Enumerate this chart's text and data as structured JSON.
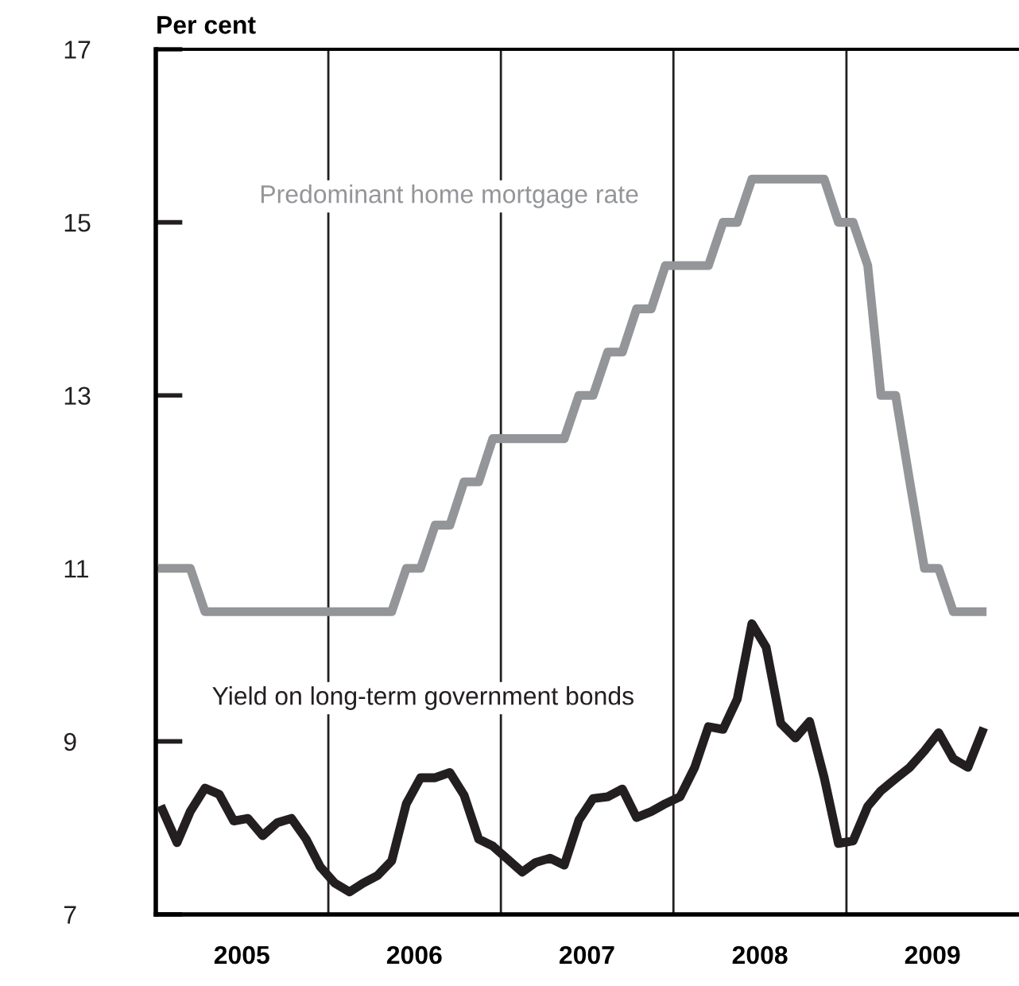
{
  "chart_data": {
    "type": "line",
    "ylabel": "Per cent",
    "x": [
      "2005-01-15",
      "2005-02-15",
      "2005-03-15",
      "2005-04-15",
      "2005-05-15",
      "2005-06-15",
      "2005-07-15",
      "2005-08-15",
      "2005-09-15",
      "2005-10-15",
      "2005-11-15",
      "2005-12-15",
      "2006-01-15",
      "2006-02-15",
      "2006-03-15",
      "2006-04-15",
      "2006-05-15",
      "2006-06-15",
      "2006-07-15",
      "2006-08-15",
      "2006-09-15",
      "2006-10-15",
      "2006-11-15",
      "2006-12-15",
      "2007-01-15",
      "2007-02-15",
      "2007-03-15",
      "2007-04-15",
      "2007-05-15",
      "2007-06-15",
      "2007-07-15",
      "2007-08-15",
      "2007-09-15",
      "2007-10-15",
      "2007-11-15",
      "2007-12-15",
      "2008-01-15",
      "2008-02-15",
      "2008-03-15",
      "2008-04-15",
      "2008-05-15",
      "2008-06-15",
      "2008-07-15",
      "2008-08-15",
      "2008-09-15",
      "2008-10-15",
      "2008-11-15",
      "2008-12-15",
      "2009-01-15",
      "2009-02-15",
      "2009-03-15",
      "2009-04-15",
      "2009-05-15",
      "2009-06-15",
      "2009-07-15",
      "2009-08-15",
      "2009-09-15",
      "2009-10-15"
    ],
    "series": [
      {
        "name": "Predominant home mortgage rate",
        "color": "#939598",
        "values": [
          11,
          11,
          11,
          10.5,
          10.5,
          10.5,
          10.5,
          10.5,
          10.5,
          10.5,
          10.5,
          10.5,
          10.5,
          10.5,
          10.5,
          10.5,
          10.5,
          11,
          11,
          11.5,
          11.5,
          12,
          12,
          12.5,
          12.5,
          12.5,
          12.5,
          12.5,
          12.5,
          13,
          13,
          13.5,
          13.5,
          14,
          14,
          14.5,
          14.5,
          14.5,
          14.5,
          15,
          15,
          15.5,
          15.5,
          15.5,
          15.5,
          15.5,
          15.5,
          15,
          15,
          14.5,
          13,
          13,
          12,
          11,
          11,
          10.5,
          10.5,
          10.5
        ]
      },
      {
        "name": "Yield on long-term government bonds",
        "color": "#231f20",
        "values": [
          8.21,
          7.83,
          8.19,
          8.46,
          8.39,
          8.08,
          8.11,
          7.91,
          8.06,
          8.11,
          7.87,
          7.55,
          7.36,
          7.26,
          7.36,
          7.45,
          7.62,
          8.28,
          8.58,
          8.58,
          8.64,
          8.38,
          7.87,
          7.79,
          7.64,
          7.49,
          7.6,
          7.65,
          7.57,
          8.09,
          8.34,
          8.36,
          8.45,
          8.12,
          8.19,
          8.28,
          8.36,
          8.7,
          9.17,
          9.14,
          9.49,
          10.36,
          10.09,
          9.21,
          9.04,
          9.23,
          8.58,
          7.82,
          7.85,
          8.25,
          8.43,
          8.57,
          8.7,
          8.89,
          9.1,
          8.8,
          8.7,
          9.11
        ]
      }
    ],
    "xlim": [
      "2005-01-01",
      "2010-01-01"
    ],
    "xticks": [
      {
        "value": "2005-07-02",
        "label": "2005"
      },
      {
        "value": "2006-07-02",
        "label": "2006"
      },
      {
        "value": "2007-07-02",
        "label": "2007"
      },
      {
        "value": "2008-07-02",
        "label": "2008"
      },
      {
        "value": "2009-07-02",
        "label": "2009"
      }
    ],
    "ylim": [
      7,
      17
    ],
    "yticks": [
      7,
      9,
      11,
      13,
      15,
      17
    ],
    "ref_lines": [
      {
        "axis": "x",
        "value": "2006-01-01",
        "color": "#231f20"
      },
      {
        "axis": "x",
        "value": "2007-01-01",
        "color": "#231f20"
      },
      {
        "axis": "x",
        "value": "2008-01-01",
        "color": "#231f20"
      },
      {
        "axis": "x",
        "value": "2009-01-01",
        "color": "#231f20"
      }
    ],
    "grid": false,
    "legend": false,
    "marker": "none",
    "line_style": "solid"
  }
}
